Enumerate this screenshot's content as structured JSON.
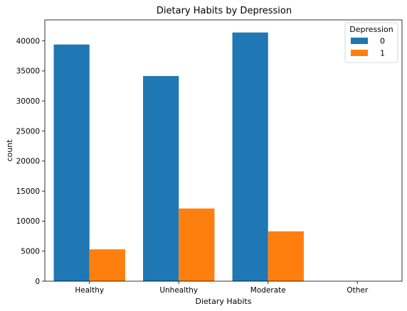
{
  "chart_data": {
    "type": "bar",
    "title": "Dietary Habits by Depression",
    "xlabel": "Dietary Habits",
    "ylabel": "count",
    "categories": [
      "Healthy",
      "Unhealthy",
      "Moderate",
      "Other"
    ],
    "series": [
      {
        "name": "0",
        "color": "#1f77b4",
        "values": [
          39400,
          34150,
          41400,
          0
        ]
      },
      {
        "name": "1",
        "color": "#ff7f0e",
        "values": [
          5300,
          12100,
          8300,
          0
        ]
      }
    ],
    "ylim": [
      0,
      43500
    ],
    "yticks": [
      0,
      5000,
      10000,
      15000,
      20000,
      25000,
      30000,
      35000,
      40000
    ],
    "legend": {
      "title": "Depression",
      "position": "top-right"
    },
    "grid": false
  }
}
